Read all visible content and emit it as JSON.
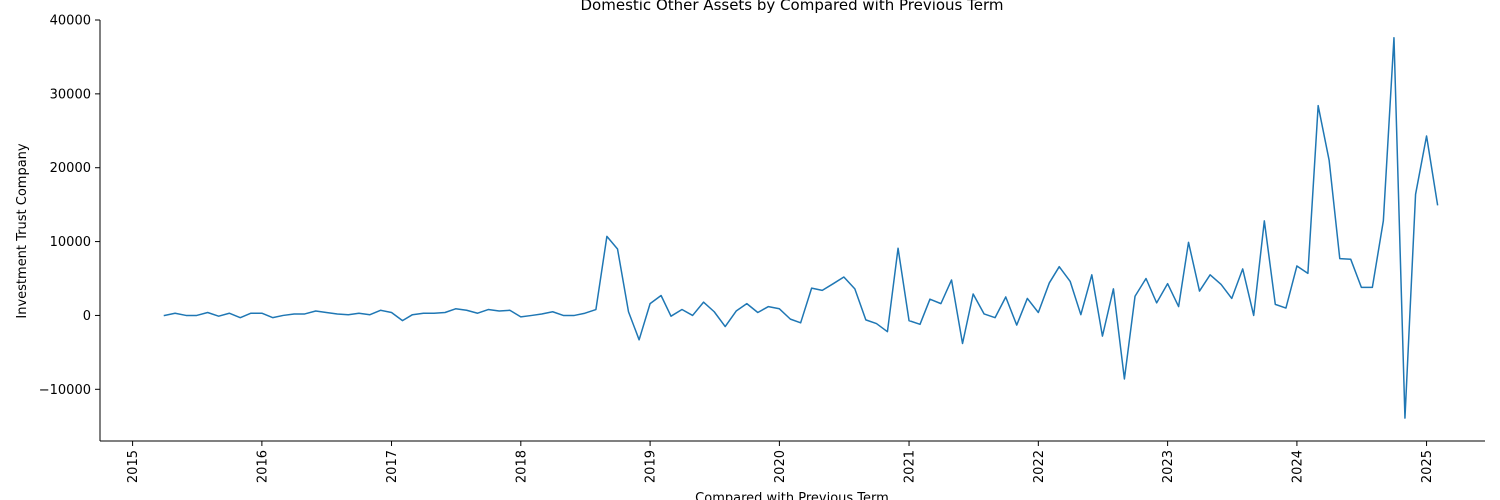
{
  "chart_data": {
    "type": "line",
    "title": "Domestic Other Assets by Compared with Previous Term",
    "xlabel": "Compared with Previous Term",
    "ylabel": "Investment Trust Company",
    "xlim": [
      "2014-10-01",
      "2025-06-15"
    ],
    "ylim": [
      -17000,
      40000
    ],
    "x_ticks": [
      "2015",
      "2016",
      "2017",
      "2018",
      "2019",
      "2020",
      "2021",
      "2022",
      "2023",
      "2024",
      "2025"
    ],
    "y_ticks": [
      -10000,
      0,
      10000,
      20000,
      30000,
      40000
    ],
    "grid": false,
    "legend": "none",
    "series": [
      {
        "color": "#1f77b4",
        "x": [
          "2015-04",
          "2015-05",
          "2015-06",
          "2015-07",
          "2015-08",
          "2015-09",
          "2015-10",
          "2015-11",
          "2015-12",
          "2016-01",
          "2016-02",
          "2016-03",
          "2016-04",
          "2016-05",
          "2016-06",
          "2016-07",
          "2016-08",
          "2016-09",
          "2016-10",
          "2016-11",
          "2016-12",
          "2017-01",
          "2017-02",
          "2017-03",
          "2017-04",
          "2017-05",
          "2017-06",
          "2017-07",
          "2017-08",
          "2017-09",
          "2017-10",
          "2017-11",
          "2017-12",
          "2018-01",
          "2018-02",
          "2018-03",
          "2018-04",
          "2018-05",
          "2018-06",
          "2018-07",
          "2018-08",
          "2018-09",
          "2018-10",
          "2018-11",
          "2018-12",
          "2019-01",
          "2019-02",
          "2019-03",
          "2019-04",
          "2019-05",
          "2019-06",
          "2019-07",
          "2019-08",
          "2019-09",
          "2019-10",
          "2019-11",
          "2019-12",
          "2020-01",
          "2020-02",
          "2020-03",
          "2020-04",
          "2020-05",
          "2020-06",
          "2020-07",
          "2020-08",
          "2020-09",
          "2020-10",
          "2020-11",
          "2020-12",
          "2021-01",
          "2021-02",
          "2021-03",
          "2021-04",
          "2021-05",
          "2021-06",
          "2021-07",
          "2021-08",
          "2021-09",
          "2021-10",
          "2021-11",
          "2021-12",
          "2022-01",
          "2022-02",
          "2022-03",
          "2022-04",
          "2022-05",
          "2022-06",
          "2022-07",
          "2022-08",
          "2022-09",
          "2022-10",
          "2022-11",
          "2022-12",
          "2023-01",
          "2023-02",
          "2023-03",
          "2023-04",
          "2023-05",
          "2023-06",
          "2023-07",
          "2023-08",
          "2023-09",
          "2023-10",
          "2023-11",
          "2023-12",
          "2024-01",
          "2024-02",
          "2024-03",
          "2024-04",
          "2024-05",
          "2024-06",
          "2024-07",
          "2024-08",
          "2024-09",
          "2024-10",
          "2024-11",
          "2024-12",
          "2025-01",
          "2025-02"
        ],
        "values": [
          0,
          300,
          0,
          0,
          400,
          -100,
          300,
          -300,
          300,
          300,
          -300,
          0,
          200,
          200,
          600,
          400,
          200,
          100,
          300,
          100,
          700,
          400,
          -700,
          100,
          300,
          300,
          400,
          900,
          700,
          300,
          800,
          600,
          700,
          -200,
          0,
          200,
          500,
          0,
          0,
          300,
          800,
          10700,
          9000,
          500,
          -3300,
          1600,
          2700,
          -100,
          800,
          0,
          1800,
          500,
          -1500,
          600,
          1600,
          400,
          1200,
          900,
          -500,
          -1000,
          3700,
          3400,
          4300,
          5200,
          3600,
          -600,
          -1100,
          -2200,
          9100,
          -700,
          -1200,
          2200,
          1600,
          4800,
          -3800,
          2900,
          200,
          -300,
          2500,
          -1300,
          2300,
          400,
          4400,
          6600,
          4600,
          100,
          5500,
          -2800,
          3600,
          -8600,
          2600,
          5000,
          1700,
          4300,
          1200,
          9900,
          3300,
          5500,
          4200,
          2300,
          6300,
          0,
          12800,
          1500,
          1000,
          6700,
          5700,
          28400,
          21000,
          7700,
          7600,
          3800,
          3800,
          12800,
          37600,
          -13900,
          16400,
          24300,
          15000
        ]
      }
    ]
  }
}
